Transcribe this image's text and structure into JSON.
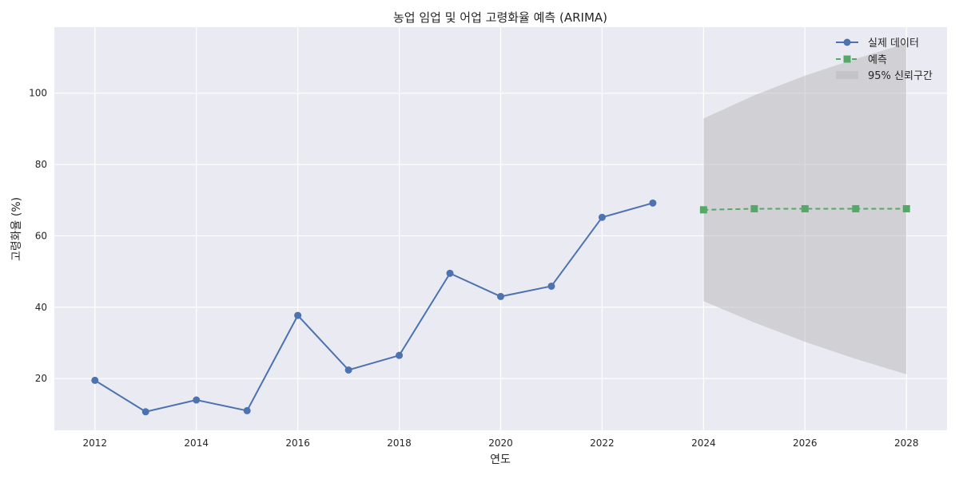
{
  "chart_data": {
    "type": "line",
    "title": "농업 임업 및 어업 고령화율 예측 (ARIMA)",
    "xlabel": "연도",
    "ylabel": "고령화율 (%)",
    "xlim": [
      2011.2,
      2028.8
    ],
    "ylim": [
      5.5,
      118.5
    ],
    "xticks": [
      2012,
      2014,
      2016,
      2018,
      2020,
      2022,
      2024,
      2026,
      2028
    ],
    "yticks": [
      20,
      40,
      60,
      80,
      100
    ],
    "grid": true,
    "legend_position": "top-right",
    "series": [
      {
        "name": "실제 데이터",
        "color": "#4c72b0",
        "marker": "circle",
        "linestyle": "solid",
        "x": [
          2012,
          2013,
          2014,
          2015,
          2016,
          2017,
          2018,
          2019,
          2020,
          2021,
          2022,
          2023
        ],
        "y": [
          19.5,
          10.7,
          14.0,
          11.0,
          37.7,
          22.4,
          26.5,
          49.5,
          43.0,
          45.9,
          65.2,
          69.2
        ]
      },
      {
        "name": "예측",
        "color": "#55a868",
        "marker": "square",
        "linestyle": "dashed",
        "x": [
          2024,
          2025,
          2026,
          2027,
          2028
        ],
        "y": [
          67.3,
          67.6,
          67.6,
          67.6,
          67.6
        ]
      }
    ],
    "confidence_band": {
      "name": "95% 신뢰구간",
      "color": "#b8b8b8",
      "x": [
        2024,
        2025,
        2026,
        2027,
        2028
      ],
      "lower": [
        41.7,
        35.7,
        30.3,
        25.5,
        21.2
      ],
      "upper": [
        92.9,
        99.4,
        104.9,
        109.6,
        114.0
      ]
    }
  }
}
